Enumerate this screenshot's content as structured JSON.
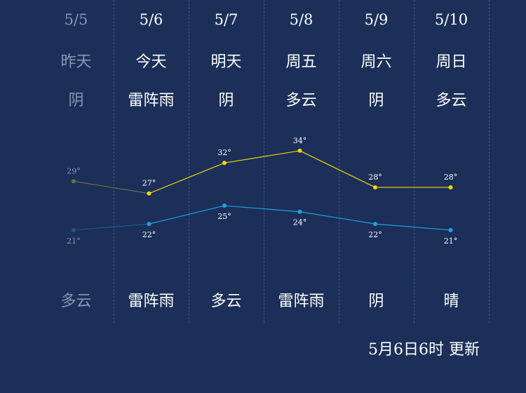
{
  "colors": {
    "background": "#1b2f58",
    "high_line": "#f5d40a",
    "low_line": "#1da2e3",
    "past_text": "#8797b5",
    "past_high": "#6b7047",
    "past_low": "#1e5a8a"
  },
  "days": [
    {
      "date": "5/5",
      "weekday": "昨天",
      "day_weather": "阴",
      "night_weather": "多云",
      "past": true
    },
    {
      "date": "5/6",
      "weekday": "今天",
      "day_weather": "雷阵雨",
      "night_weather": "雷阵雨",
      "past": false
    },
    {
      "date": "5/7",
      "weekday": "明天",
      "day_weather": "阴",
      "night_weather": "多云",
      "past": false
    },
    {
      "date": "5/8",
      "weekday": "周五",
      "day_weather": "多云",
      "night_weather": "雷阵雨",
      "past": false
    },
    {
      "date": "5/9",
      "weekday": "周六",
      "day_weather": "阴",
      "night_weather": "阴",
      "past": false
    },
    {
      "date": "5/10",
      "weekday": "周日",
      "day_weather": "多云",
      "night_weather": "晴",
      "past": false
    }
  ],
  "chart_data": {
    "type": "line",
    "x": [
      "5/5",
      "5/6",
      "5/7",
      "5/8",
      "5/9",
      "5/10"
    ],
    "series": [
      {
        "key": "high",
        "values": [
          29,
          27,
          32,
          34,
          28,
          28
        ],
        "labels": [
          "29°",
          "27°",
          "32°",
          "34°",
          "28°",
          "28°"
        ]
      },
      {
        "key": "low",
        "values": [
          21,
          22,
          25,
          24,
          22,
          21
        ],
        "labels": [
          "21°",
          "22°",
          "25°",
          "24°",
          "22°",
          "21°"
        ]
      }
    ],
    "ylim": [
      15,
      38
    ],
    "grid": false
  },
  "update_text": "5月6日6时 更新"
}
